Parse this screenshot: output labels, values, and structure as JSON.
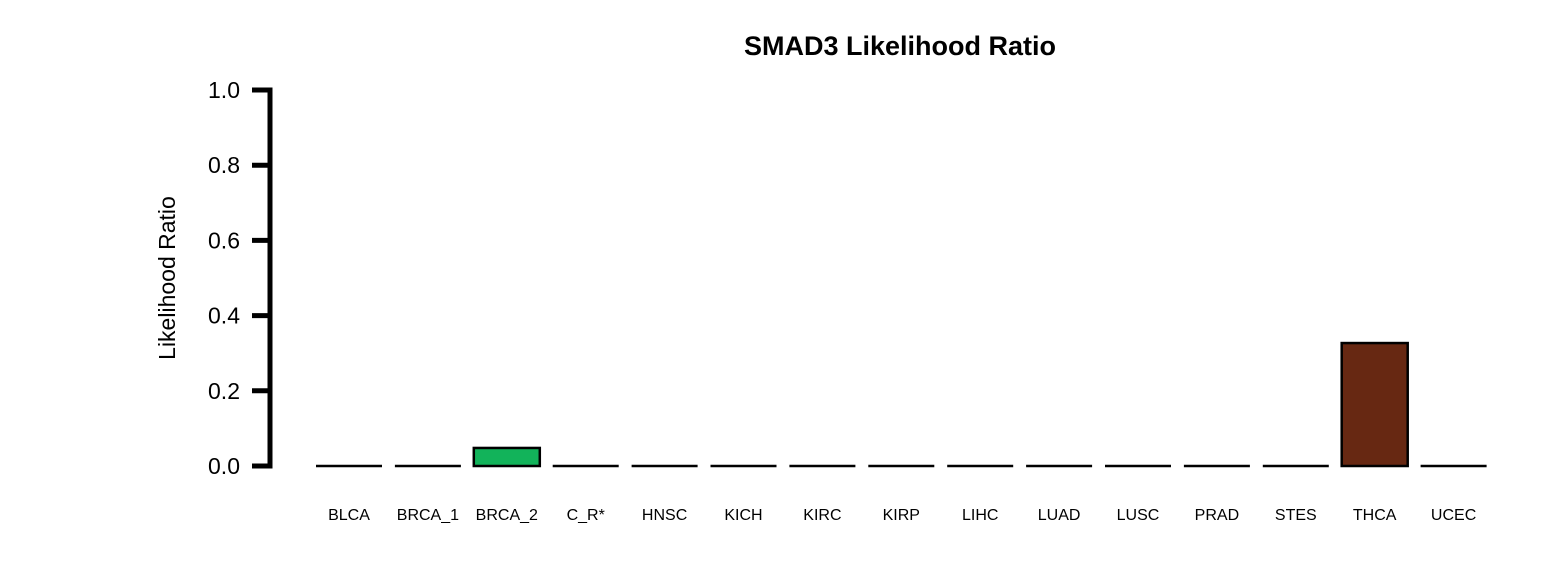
{
  "chart_data": {
    "type": "bar",
    "title": "SMAD3 Likelihood Ratio",
    "xlabel": "",
    "ylabel": "Likelihood Ratio",
    "ylim": [
      0,
      1
    ],
    "yticks": [
      0.0,
      0.2,
      0.4,
      0.6,
      0.8,
      1.0
    ],
    "ytick_labels": [
      "0.0",
      "0.2",
      "0.4",
      "0.6",
      "0.8",
      "1.0"
    ],
    "grid": false,
    "legend": "none",
    "categories": [
      "BLCA",
      "BRCA_1",
      "BRCA_2",
      "C_R*",
      "HNSC",
      "KICH",
      "KIRC",
      "KIRP",
      "LIHC",
      "LUAD",
      "LUSC",
      "PRAD",
      "STES",
      "THCA",
      "UCEC"
    ],
    "values": [
      0.003,
      0.0,
      0.048,
      0.0,
      0.0,
      0.0,
      0.0,
      0.0,
      0.0,
      0.0,
      0.0,
      0.0,
      0.0,
      0.327,
      0.0
    ],
    "colors": [
      "#000000",
      "#000000",
      "#12b35a",
      "#000000",
      "#000000",
      "#000000",
      "#000000",
      "#000000",
      "#000000",
      "#000000",
      "#000000",
      "#000000",
      "#000000",
      "#672812",
      "#000000"
    ]
  }
}
